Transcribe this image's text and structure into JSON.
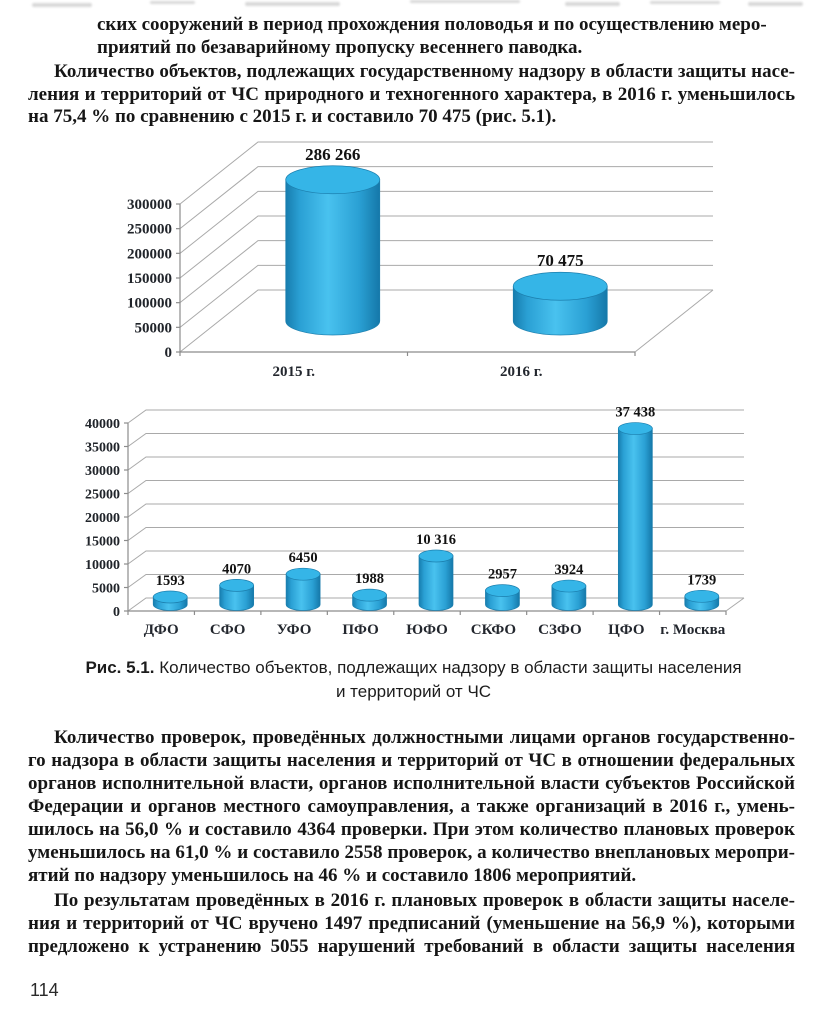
{
  "page": {
    "number": "114"
  },
  "intro": {
    "para_continuation": {
      "lines": [
        "ских сооружений в период прохождения половодья и по осуществлению меро-",
        "приятий по безаварийному пропуску весеннего паводка."
      ]
    },
    "para_objects": {
      "lines": [
        "Количество объектов, подлежащих государственному надзору в области защиты насе-",
        "ления и территорий от ЧС природного и техногенного характера, в 2016 г. уменьшилось",
        "на 75,4 % по сравнению с 2015 г. и составило 70 475 (рис. 5.1)."
      ]
    }
  },
  "figure": {
    "label": "Рис. 5.1.",
    "caption_line1": "Количество объектов, подлежащих надзору в области защиты населения",
    "caption_line2": "и территорий от ЧС"
  },
  "body": {
    "para_inspections": {
      "lines": [
        "Количество проверок, проведённых должностными лицами органов государственно-",
        "го надзора в области защиты населения и территорий от ЧС в отношении федеральных",
        "органов исполнительной власти, органов исполнительной власти субъектов Российской",
        "Федерации и органов местного самоуправления, а также организаций в 2016 г., умень-",
        "шилось на 56,0 % и составило 4364 проверки. При этом количество плановых проверок",
        "уменьшилось на 61,0 % и составило 2558 проверок, а количество внеплановых меропри-",
        "ятий по надзору уменьшилось на 46 % и составило 1806 мероприятий."
      ]
    },
    "para_results": {
      "lines": [
        "По результатам проведённых в 2016 г. плановых проверок в области защиты населе-",
        "ния и территорий от ЧС вручено 1497 предписаний (уменьшение на 56,9 %), которыми",
        "предложено к устранению 5055 нарушений требований в области защиты населения"
      ]
    }
  },
  "chart_data": [
    {
      "type": "bar",
      "shape": "cylinder-3d",
      "categories": [
        "2015 г.",
        "2016 г."
      ],
      "values": [
        286266,
        70475
      ],
      "value_labels": [
        "286 266",
        "70 475"
      ],
      "ylim": [
        0,
        300000
      ],
      "ytick_step": 50000,
      "yticks": [
        0,
        50000,
        100000,
        150000,
        200000,
        250000,
        300000
      ],
      "grid": true,
      "legend": false,
      "data_labels": true,
      "title": "",
      "xlabel": "",
      "ylabel": "",
      "bar_color": "#29a9df"
    },
    {
      "type": "bar",
      "shape": "cylinder-3d",
      "categories": [
        "ДФО",
        "СФО",
        "УФО",
        "ПФО",
        "ЮФО",
        "СКФО",
        "СЗФО",
        "ЦФО",
        "г. Москва"
      ],
      "values": [
        1593,
        4070,
        6450,
        1988,
        10316,
        2957,
        3924,
        37438,
        1739
      ],
      "value_labels": [
        "1593",
        "4070",
        "6450",
        "1988",
        "10 316",
        "2957",
        "3924",
        "37 438",
        "1739"
      ],
      "ylim": [
        0,
        40000
      ],
      "ytick_step": 5000,
      "yticks": [
        0,
        5000,
        10000,
        15000,
        20000,
        25000,
        30000,
        35000,
        40000
      ],
      "grid": true,
      "legend": false,
      "data_labels": true,
      "title": "",
      "xlabel": "",
      "ylabel": "",
      "bar_color": "#29a9df"
    }
  ],
  "colors": {
    "bar_fill_mid": "#49c2ef",
    "bar_fill_edge": "#177dae",
    "bar_top": "#35b5e7",
    "bar_outline": "#1c7fae",
    "gridline": "#a9a9a9",
    "axis": "#8c8c8c",
    "text": "#161616"
  }
}
